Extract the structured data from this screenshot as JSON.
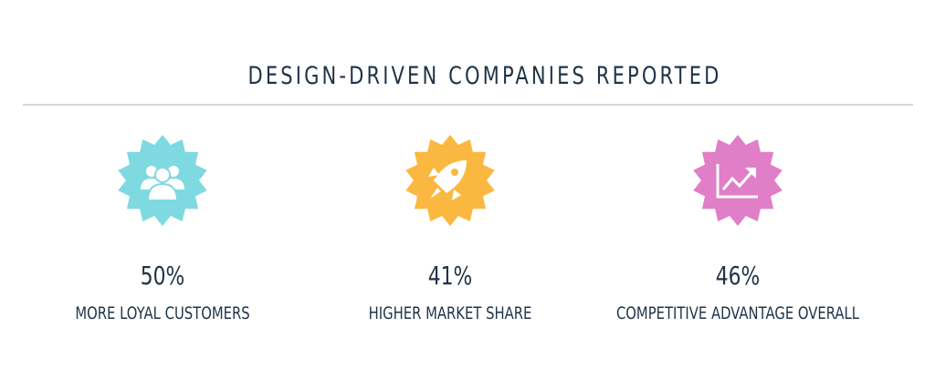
{
  "header": {
    "title": "DESIGN-DRIVEN COMPANIES REPORTED"
  },
  "items": [
    {
      "stat": "50%",
      "label": "MORE LOYAL CUSTOMERS"
    },
    {
      "stat": "41%",
      "label": "HIGHER MARKET SHARE"
    },
    {
      "stat": "46%",
      "label": "COMPETITIVE ADVANTAGE OVERALL"
    }
  ]
}
